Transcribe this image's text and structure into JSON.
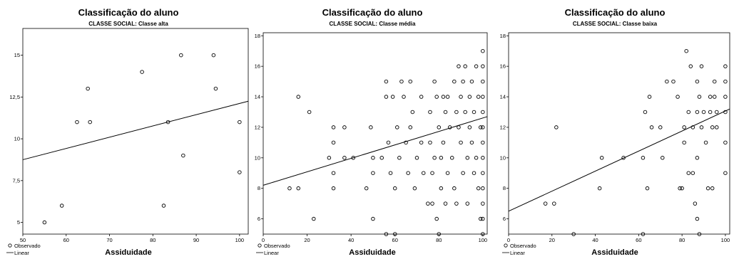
{
  "charts": [
    {
      "type": "scatter",
      "title": "Classificação do aluno",
      "subtitle": "CLASSE SOCIAL: Classe alta",
      "xlabel": "Assiduidade",
      "ylabel": "",
      "xlim": [
        50,
        102
      ],
      "ylim": [
        4.3,
        16.6
      ],
      "xticks": [
        50,
        60,
        70,
        80,
        90,
        100
      ],
      "yticks": [
        5,
        7.5,
        10,
        12.5,
        15
      ],
      "ytick_labels": [
        "5",
        "7,5",
        "10",
        "12,5",
        "15"
      ],
      "grid": false,
      "legend": [
        "Observado",
        "Linear"
      ],
      "series": [
        {
          "name": "Observado",
          "points": [
            [
              55,
              5
            ],
            [
              59,
              6
            ],
            [
              62.5,
              11
            ],
            [
              65,
              13
            ],
            [
              65.5,
              11
            ],
            [
              77.5,
              14
            ],
            [
              82.5,
              6
            ],
            [
              83.5,
              11
            ],
            [
              86.5,
              15
            ],
            [
              87,
              9
            ],
            [
              94,
              15
            ],
            [
              94.5,
              13
            ],
            [
              100,
              11
            ],
            [
              100,
              8
            ]
          ]
        },
        {
          "name": "Linear",
          "line": [
            [
              50,
              8.75
            ],
            [
              102,
              12.25
            ]
          ]
        }
      ]
    },
    {
      "type": "scatter",
      "title": "Classificação do aluno",
      "subtitle": "CLASSE SOCIAL: Classe média",
      "xlabel": "Assiduidade",
      "ylabel": "",
      "xlim": [
        0,
        102
      ],
      "ylim": [
        5,
        18.2
      ],
      "xticks": [
        0,
        20,
        40,
        60,
        80,
        100
      ],
      "yticks": [
        6,
        8,
        10,
        12,
        14,
        16,
        18
      ],
      "ytick_labels": [
        "6",
        "8",
        "10",
        "12",
        "14",
        "16",
        "18"
      ],
      "grid": false,
      "legend": [
        "Observado",
        "Linear"
      ],
      "series": [
        {
          "name": "Observado",
          "points": [
            [
              12,
              8
            ],
            [
              16,
              14
            ],
            [
              16,
              8
            ],
            [
              21,
              13
            ],
            [
              23,
              6
            ],
            [
              30,
              10
            ],
            [
              32,
              12
            ],
            [
              32,
              11
            ],
            [
              32,
              9
            ],
            [
              32,
              8
            ],
            [
              37,
              12
            ],
            [
              37,
              10
            ],
            [
              41,
              10
            ],
            [
              47,
              8
            ],
            [
              49,
              12
            ],
            [
              50,
              10
            ],
            [
              50,
              9
            ],
            [
              50,
              6
            ],
            [
              54,
              10
            ],
            [
              56,
              15
            ],
            [
              56,
              14
            ],
            [
              57,
              11
            ],
            [
              58,
              9
            ],
            [
              59,
              14
            ],
            [
              60,
              8
            ],
            [
              61,
              12
            ],
            [
              62,
              10
            ],
            [
              63,
              15
            ],
            [
              64,
              14
            ],
            [
              65,
              11
            ],
            [
              66,
              9
            ],
            [
              67,
              12
            ],
            [
              67,
              15
            ],
            [
              68,
              13
            ],
            [
              69,
              8
            ],
            [
              70,
              10
            ],
            [
              72,
              14
            ],
            [
              72,
              11
            ],
            [
              73,
              9
            ],
            [
              75,
              7
            ],
            [
              76,
              13
            ],
            [
              76,
              11
            ],
            [
              77,
              9
            ],
            [
              77,
              7
            ],
            [
              78,
              15
            ],
            [
              78,
              10
            ],
            [
              79,
              14
            ],
            [
              79,
              6
            ],
            [
              80,
              12
            ],
            [
              81,
              10
            ],
            [
              81,
              8
            ],
            [
              82,
              14
            ],
            [
              82,
              11
            ],
            [
              83,
              13
            ],
            [
              83,
              7
            ],
            [
              84,
              14
            ],
            [
              84,
              9
            ],
            [
              85,
              12
            ],
            [
              86,
              10
            ],
            [
              87,
              15
            ],
            [
              87,
              8
            ],
            [
              88,
              13
            ],
            [
              88,
              7
            ],
            [
              89,
              16
            ],
            [
              89,
              12
            ],
            [
              90,
              14
            ],
            [
              90,
              11
            ],
            [
              91,
              15
            ],
            [
              91,
              9
            ],
            [
              92,
              16
            ],
            [
              92,
              13
            ],
            [
              93,
              10
            ],
            [
              93,
              7
            ],
            [
              94,
              14
            ],
            [
              94,
              12
            ],
            [
              95,
              15
            ],
            [
              95,
              11
            ],
            [
              96,
              13
            ],
            [
              96,
              9
            ],
            [
              97,
              16
            ],
            [
              97,
              10
            ],
            [
              98,
              14
            ],
            [
              98,
              8
            ],
            [
              99,
              12
            ],
            [
              99,
              6
            ],
            [
              100,
              17
            ],
            [
              100,
              16
            ],
            [
              100,
              15
            ],
            [
              100,
              14
            ],
            [
              100,
              13
            ],
            [
              100,
              12
            ],
            [
              100,
              11
            ],
            [
              100,
              10
            ],
            [
              100,
              9
            ],
            [
              100,
              8
            ],
            [
              100,
              7
            ],
            [
              100,
              6
            ],
            [
              56,
              5
            ],
            [
              60,
              5
            ],
            [
              80,
              5
            ],
            [
              100,
              5
            ]
          ]
        },
        {
          "name": "Linear",
          "line": [
            [
              0,
              8.2
            ],
            [
              102,
              12.7
            ]
          ]
        }
      ]
    },
    {
      "type": "scatter",
      "title": "Classificação do aluno",
      "subtitle": "CLASSE SOCIAL: Classe baixa",
      "xlabel": "Assiduidade",
      "ylabel": "",
      "xlim": [
        0,
        102
      ],
      "ylim": [
        5,
        18.2
      ],
      "xticks": [
        0,
        20,
        40,
        60,
        80,
        100
      ],
      "yticks": [
        6,
        8,
        10,
        12,
        14,
        16,
        18
      ],
      "ytick_labels": [
        "6",
        "8",
        "10",
        "12",
        "14",
        "16",
        "18"
      ],
      "grid": false,
      "legend": [
        "Observado",
        "Linear"
      ],
      "series": [
        {
          "name": "Observado",
          "points": [
            [
              17,
              7
            ],
            [
              21,
              7
            ],
            [
              22,
              12
            ],
            [
              30,
              5
            ],
            [
              42,
              8
            ],
            [
              43,
              10
            ],
            [
              53,
              10
            ],
            [
              62,
              10
            ],
            [
              62,
              5
            ],
            [
              63,
              13
            ],
            [
              64,
              8
            ],
            [
              65,
              14
            ],
            [
              66,
              12
            ],
            [
              70,
              12
            ],
            [
              71,
              10
            ],
            [
              73,
              15
            ],
            [
              76,
              15
            ],
            [
              78,
              14
            ],
            [
              79,
              8
            ],
            [
              80,
              8
            ],
            [
              81,
              12
            ],
            [
              81,
              11
            ],
            [
              82,
              17
            ],
            [
              83,
              13
            ],
            [
              83,
              9
            ],
            [
              84,
              16
            ],
            [
              85,
              12
            ],
            [
              85,
              9
            ],
            [
              86,
              7
            ],
            [
              87,
              15
            ],
            [
              87,
              13
            ],
            [
              87,
              10
            ],
            [
              87,
              6
            ],
            [
              88,
              14
            ],
            [
              88,
              5
            ],
            [
              89,
              16
            ],
            [
              89,
              12
            ],
            [
              90,
              13
            ],
            [
              91,
              11
            ],
            [
              92,
              8
            ],
            [
              93,
              14
            ],
            [
              93,
              13
            ],
            [
              94,
              12
            ],
            [
              94,
              8
            ],
            [
              95,
              15
            ],
            [
              95,
              14
            ],
            [
              96,
              13
            ],
            [
              96,
              12
            ],
            [
              100,
              16
            ],
            [
              100,
              15
            ],
            [
              100,
              14
            ],
            [
              100,
              13
            ],
            [
              100,
              11
            ],
            [
              100,
              9
            ]
          ]
        },
        {
          "name": "Linear",
          "line": [
            [
              0,
              6.5
            ],
            [
              102,
              13.2
            ]
          ]
        }
      ]
    }
  ]
}
